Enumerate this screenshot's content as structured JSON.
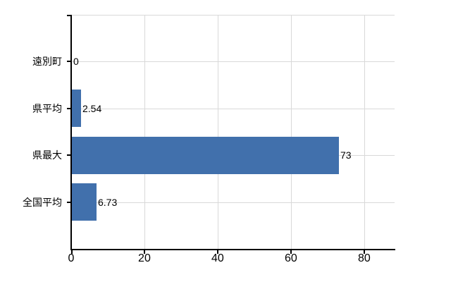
{
  "chart_data": {
    "type": "bar",
    "orientation": "horizontal",
    "categories": [
      "遠別町",
      "県平均",
      "県最大",
      "全国平均"
    ],
    "values": [
      0,
      2.54,
      73,
      6.73
    ],
    "value_labels": [
      "0",
      "2.54",
      "73",
      "6.73"
    ],
    "x_ticks": [
      0,
      20,
      40,
      60,
      80
    ],
    "x_tick_labels": [
      "0",
      "20",
      "40",
      "60",
      "80"
    ],
    "xlim": [
      0,
      88.3
    ],
    "grid": true,
    "legend": false,
    "bar_color": "#4170ac",
    "gridline_color": "#d9d9d9",
    "axis_color": "#000000",
    "text_color": "#000000",
    "background_color": "#ffffff"
  }
}
